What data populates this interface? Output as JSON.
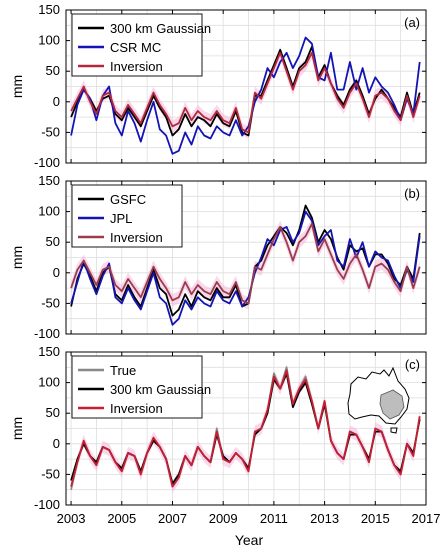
{
  "figure": {
    "xlabel": "Year"
  },
  "chart_data": [
    {
      "type": "line",
      "panel_label": "(a)",
      "ylabel": "mm",
      "ylim": [
        -100,
        150
      ],
      "yticks": [
        -100,
        -50,
        0,
        50,
        100,
        150
      ],
      "xlim": [
        2002.8,
        2017
      ],
      "xticks": [
        2003,
        2005,
        2007,
        2009,
        2011,
        2013,
        2015,
        2017
      ],
      "grid": true,
      "legend": "top-left",
      "x": [
        2003.0,
        2003.25,
        2003.5,
        2003.75,
        2004.0,
        2004.25,
        2004.5,
        2004.75,
        2005.0,
        2005.25,
        2005.5,
        2005.75,
        2006.0,
        2006.25,
        2006.5,
        2006.75,
        2007.0,
        2007.25,
        2007.5,
        2007.75,
        2008.0,
        2008.25,
        2008.5,
        2008.75,
        2009.0,
        2009.25,
        2009.5,
        2009.75,
        2010.0,
        2010.25,
        2010.5,
        2010.75,
        2011.0,
        2011.25,
        2011.5,
        2011.75,
        2012.0,
        2012.25,
        2012.5,
        2012.75,
        2013.0,
        2013.25,
        2013.5,
        2013.75,
        2014.0,
        2014.25,
        2014.5,
        2014.75,
        2015.0,
        2015.25,
        2015.5,
        2015.75,
        2016.0,
        2016.25,
        2016.5,
        2016.75
      ],
      "series": [
        {
          "name": "300 km Gaussian",
          "color": "#000000",
          "values": [
            -25,
            0,
            20,
            5,
            -15,
            5,
            10,
            -20,
            -30,
            -10,
            -25,
            -40,
            -15,
            10,
            -10,
            -25,
            -55,
            -45,
            -20,
            -40,
            -25,
            -30,
            -40,
            -20,
            -35,
            -40,
            -15,
            -50,
            -55,
            10,
            10,
            35,
            60,
            85,
            55,
            25,
            55,
            65,
            90,
            40,
            60,
            30,
            10,
            -5,
            20,
            35,
            10,
            -20,
            5,
            20,
            5,
            -10,
            -25,
            15,
            -20,
            15
          ]
        },
        {
          "name": "CSR MC",
          "color": "#1414b4",
          "values": [
            -55,
            -5,
            20,
            5,
            -30,
            10,
            25,
            -35,
            -55,
            -15,
            -35,
            -65,
            -30,
            0,
            -45,
            -55,
            -85,
            -80,
            -50,
            -70,
            -40,
            -55,
            -60,
            -40,
            -50,
            -55,
            -30,
            -55,
            -40,
            0,
            20,
            55,
            40,
            65,
            80,
            55,
            75,
            105,
            95,
            40,
            35,
            80,
            20,
            20,
            65,
            20,
            55,
            15,
            40,
            25,
            15,
            -5,
            -30,
            5,
            -20,
            65
          ]
        },
        {
          "name": "Inversion",
          "color": "#b4283c",
          "values": [
            -15,
            5,
            25,
            0,
            -20,
            10,
            15,
            -15,
            -25,
            -5,
            -20,
            -35,
            -10,
            15,
            -5,
            -20,
            -40,
            -35,
            -10,
            -30,
            -15,
            -25,
            -30,
            -15,
            -30,
            -35,
            -10,
            -45,
            -50,
            15,
            5,
            30,
            55,
            80,
            50,
            20,
            50,
            60,
            80,
            35,
            55,
            30,
            5,
            -10,
            15,
            30,
            5,
            -25,
            10,
            15,
            5,
            -15,
            -30,
            10,
            -25,
            10
          ]
        }
      ]
    },
    {
      "type": "line",
      "panel_label": "(b)",
      "ylabel": "mm",
      "ylim": [
        -100,
        150
      ],
      "yticks": [
        -100,
        -50,
        0,
        50,
        100,
        150
      ],
      "xlim": [
        2002.8,
        2017
      ],
      "xticks": [
        2003,
        2005,
        2007,
        2009,
        2011,
        2013,
        2015,
        2017
      ],
      "grid": true,
      "legend": "top-left",
      "x": [
        2003.0,
        2003.25,
        2003.5,
        2003.75,
        2004.0,
        2004.25,
        2004.5,
        2004.75,
        2005.0,
        2005.25,
        2005.5,
        2005.75,
        2006.0,
        2006.25,
        2006.5,
        2006.75,
        2007.0,
        2007.25,
        2007.5,
        2007.75,
        2008.0,
        2008.25,
        2008.5,
        2008.75,
        2009.0,
        2009.25,
        2009.5,
        2009.75,
        2010.0,
        2010.25,
        2010.5,
        2010.75,
        2011.0,
        2011.25,
        2011.5,
        2011.75,
        2012.0,
        2012.25,
        2012.5,
        2012.75,
        2013.0,
        2013.25,
        2013.5,
        2013.75,
        2014.0,
        2014.25,
        2014.5,
        2014.75,
        2015.0,
        2015.25,
        2015.5,
        2015.75,
        2016.0,
        2016.25,
        2016.5,
        2016.75
      ],
      "series": [
        {
          "name": "GSFC",
          "color": "#000000",
          "values": [
            -55,
            -10,
            15,
            -5,
            -30,
            0,
            10,
            -35,
            -45,
            -20,
            -40,
            -55,
            -25,
            5,
            -25,
            -35,
            -70,
            -60,
            -35,
            -55,
            -30,
            -40,
            -45,
            -25,
            -40,
            -40,
            -20,
            -55,
            -50,
            10,
            20,
            45,
            60,
            75,
            65,
            45,
            70,
            110,
            90,
            50,
            70,
            55,
            25,
            5,
            45,
            35,
            40,
            10,
            30,
            30,
            15,
            -10,
            -20,
            10,
            -10,
            65
          ]
        },
        {
          "name": "JPL",
          "color": "#1414b4",
          "values": [
            -50,
            -15,
            20,
            -10,
            -35,
            -5,
            15,
            -40,
            -50,
            -25,
            -45,
            -60,
            -30,
            0,
            -40,
            -50,
            -85,
            -75,
            -45,
            -60,
            -40,
            -50,
            -55,
            -30,
            -45,
            -50,
            -30,
            -55,
            -40,
            0,
            25,
            55,
            45,
            70,
            75,
            50,
            65,
            100,
            85,
            45,
            60,
            70,
            20,
            10,
            55,
            25,
            50,
            10,
            35,
            25,
            20,
            -5,
            -25,
            5,
            -15,
            60
          ]
        },
        {
          "name": "Inversion",
          "color": "#9b3c4b",
          "values": [
            -25,
            5,
            20,
            0,
            -20,
            5,
            10,
            -20,
            -30,
            -10,
            -25,
            -40,
            -15,
            10,
            -10,
            -25,
            -45,
            -40,
            -15,
            -35,
            -20,
            -30,
            -35,
            -15,
            -30,
            -35,
            -15,
            -45,
            -50,
            10,
            5,
            30,
            55,
            75,
            50,
            20,
            50,
            60,
            80,
            35,
            55,
            30,
            5,
            -10,
            15,
            30,
            5,
            -25,
            10,
            15,
            5,
            -15,
            -30,
            10,
            -25,
            10
          ]
        }
      ]
    },
    {
      "type": "line",
      "panel_label": "(c)",
      "ylabel": "mm",
      "ylim": [
        -100,
        150
      ],
      "yticks": [
        -100,
        -50,
        0,
        50,
        100,
        150
      ],
      "xlim": [
        2002.8,
        2017
      ],
      "xticks": [
        2003,
        2005,
        2007,
        2009,
        2011,
        2013,
        2015,
        2017
      ],
      "xtick_labels": [
        "2003",
        "2005",
        "2007",
        "2009",
        "2011",
        "2013",
        "2015",
        "2017"
      ],
      "grid": true,
      "legend": "top-left",
      "inset": "map of Australia with a highlighted south-eastern basin, top-right",
      "x": [
        2003.0,
        2003.25,
        2003.5,
        2003.75,
        2004.0,
        2004.25,
        2004.5,
        2004.75,
        2005.0,
        2005.25,
        2005.5,
        2005.75,
        2006.0,
        2006.25,
        2006.5,
        2006.75,
        2007.0,
        2007.25,
        2007.5,
        2007.75,
        2008.0,
        2008.25,
        2008.5,
        2008.75,
        2009.0,
        2009.25,
        2009.5,
        2009.75,
        2010.0,
        2010.25,
        2010.5,
        2010.75,
        2011.0,
        2011.25,
        2011.5,
        2011.75,
        2012.0,
        2012.25,
        2012.5,
        2012.75,
        2013.0,
        2013.25,
        2013.5,
        2013.75,
        2014.0,
        2014.25,
        2014.5,
        2014.75,
        2015.0,
        2015.25,
        2015.5,
        2015.75,
        2016.0,
        2016.25,
        2016.5,
        2016.75
      ],
      "series": [
        {
          "name": "True",
          "color": "#888888",
          "values": [
            -75,
            -30,
            5,
            -20,
            -35,
            -5,
            -10,
            -30,
            -45,
            -15,
            -20,
            -50,
            -15,
            10,
            -5,
            -25,
            -70,
            -55,
            -20,
            -35,
            -5,
            -20,
            -30,
            25,
            -25,
            -30,
            -15,
            -25,
            -45,
            20,
            25,
            55,
            115,
            90,
            125,
            65,
            90,
            110,
            70,
            25,
            70,
            5,
            -15,
            -25,
            20,
            15,
            -5,
            -30,
            25,
            20,
            -10,
            -35,
            -50,
            0,
            -20,
            45
          ]
        },
        {
          "name": "300 km Gaussian",
          "color": "#000000",
          "values": [
            -60,
            -25,
            0,
            -20,
            -30,
            -5,
            -10,
            -30,
            -40,
            -15,
            -20,
            -45,
            -15,
            5,
            -5,
            -25,
            -65,
            -50,
            -20,
            -35,
            -5,
            -20,
            -30,
            15,
            -20,
            -30,
            -15,
            -25,
            -40,
            15,
            25,
            50,
            105,
            90,
            115,
            60,
            85,
            100,
            65,
            25,
            65,
            5,
            -15,
            -25,
            15,
            15,
            -5,
            -25,
            20,
            20,
            -10,
            -35,
            -45,
            0,
            -15,
            40
          ]
        },
        {
          "name": "Inversion",
          "color": "#c81e32",
          "values": [
            -70,
            -30,
            5,
            -20,
            -35,
            -5,
            -10,
            -30,
            -45,
            -15,
            -20,
            -50,
            -15,
            10,
            -5,
            -25,
            -70,
            -55,
            -20,
            -35,
            -5,
            -20,
            -30,
            20,
            -25,
            -30,
            -15,
            -25,
            -45,
            20,
            25,
            55,
            110,
            90,
            120,
            65,
            90,
            105,
            70,
            25,
            70,
            5,
            -15,
            -25,
            20,
            15,
            -5,
            -30,
            25,
            20,
            -10,
            -35,
            -50,
            0,
            -20,
            45
          ]
        }
      ]
    }
  ]
}
